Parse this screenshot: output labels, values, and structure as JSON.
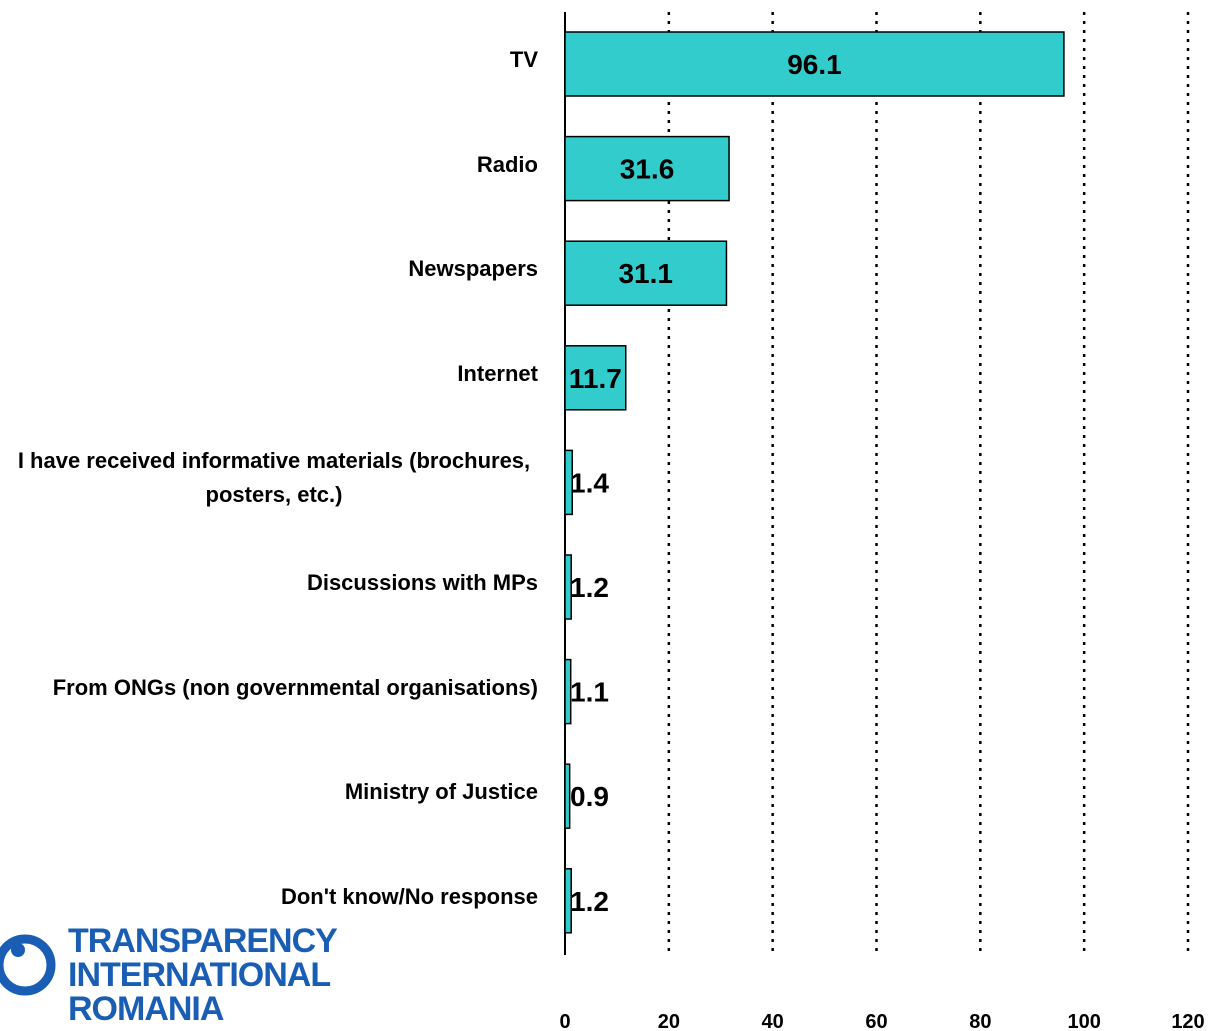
{
  "chart_data": {
    "type": "barh",
    "categories": [
      "TV",
      "Radio",
      "Newspapers",
      "Internet",
      "I have received informative materials (brochures, posters, etc.)",
      "Discussions with MPs",
      "From ONGs (non governmental organisations)",
      "Ministry of Justice",
      "Don't know/No response"
    ],
    "values": [
      96.1,
      31.6,
      31.1,
      11.7,
      1.4,
      1.2,
      1.1,
      0.9,
      1.2
    ],
    "color": "#33cccc",
    "xlim": [
      0,
      120
    ],
    "xticks": [
      0,
      20,
      40,
      60,
      80,
      100,
      120
    ],
    "grid": true
  },
  "logo": [
    "TRANSPARENCY",
    "INTERNATIONAL",
    "ROMANIA"
  ]
}
